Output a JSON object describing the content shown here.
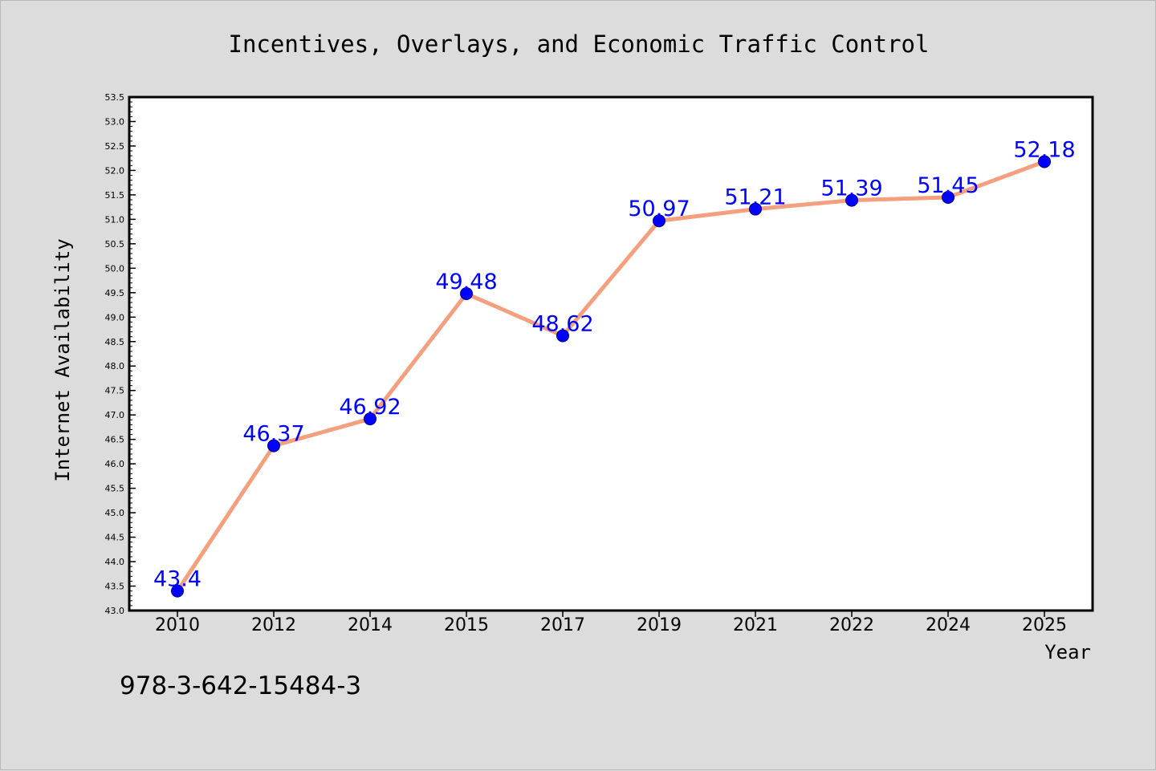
{
  "isbn": "978-3-642-15484-3",
  "chart_data": {
    "type": "line",
    "title": "Incentives, Overlays, and Economic Traffic Control",
    "xlabel": "Year",
    "ylabel": "Internet Availability",
    "categories": [
      "2010",
      "2012",
      "2014",
      "2015",
      "2017",
      "2019",
      "2021",
      "2022",
      "2024",
      "2025"
    ],
    "values": [
      43.4,
      46.37,
      46.92,
      49.48,
      48.62,
      50.97,
      51.21,
      51.39,
      51.45,
      52.18
    ],
    "data_labels": [
      "43.4",
      "46.37",
      "46.92",
      "49.48",
      "48.62",
      "50.97",
      "51.21",
      "51.39",
      "51.45",
      "52.18"
    ],
    "yticks": [
      "43.0",
      "43.5",
      "44.0",
      "44.5",
      "45.0",
      "45.5",
      "46.0",
      "46.5",
      "47.0",
      "47.5",
      "48.0",
      "48.5",
      "49.0",
      "49.5",
      "50.0",
      "50.5",
      "51.0",
      "51.5",
      "52.0",
      "52.5",
      "53.0",
      "53.5"
    ],
    "ylim": [
      43.0,
      53.5
    ],
    "grid": false,
    "legend": "none",
    "colors": {
      "line": "#f4a07e",
      "marker": "#0000ff",
      "label": "#0000ff"
    }
  }
}
